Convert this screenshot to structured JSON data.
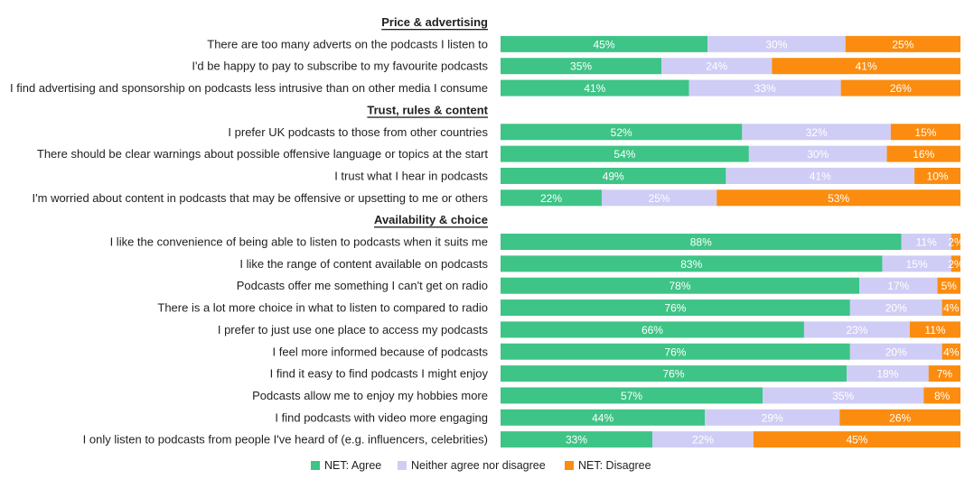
{
  "chart_data": {
    "type": "bar",
    "orientation": "horizontal-stacked-100",
    "colors": {
      "agree": "#3ec486",
      "neither": "#cfcdf5",
      "disagree": "#fb8c0f"
    },
    "legend": [
      {
        "key": "agree",
        "label": "NET: Agree"
      },
      {
        "key": "neither",
        "label": "Neither agree nor disagree"
      },
      {
        "key": "disagree",
        "label": "NET: Disagree"
      }
    ],
    "legend_position": "bottom",
    "groups": [
      {
        "title": "Price & advertising",
        "rows": [
          {
            "label": "There are too many adverts on the podcasts I listen to",
            "agree": 45,
            "neither": 30,
            "disagree": 25
          },
          {
            "label": "I'd be happy to pay to subscribe to my favourite podcasts",
            "agree": 35,
            "neither": 24,
            "disagree": 41
          },
          {
            "label": "I find advertising and sponsorship on podcasts less intrusive than on other media I consume",
            "agree": 41,
            "neither": 33,
            "disagree": 26
          }
        ]
      },
      {
        "title": "Trust, rules & content",
        "rows": [
          {
            "label": "I prefer UK podcasts to those from other countries",
            "agree": 52,
            "neither": 32,
            "disagree": 15
          },
          {
            "label": "There should be clear warnings about possible offensive language or topics at the start",
            "agree": 54,
            "neither": 30,
            "disagree": 16
          },
          {
            "label": "I trust what I hear in podcasts",
            "agree": 49,
            "neither": 41,
            "disagree": 10
          },
          {
            "label": "I'm worried about content in podcasts that may be offensive or upsetting to me or others",
            "agree": 22,
            "neither": 25,
            "disagree": 53
          }
        ]
      },
      {
        "title": "Availability & choice",
        "rows": [
          {
            "label": "I like the convenience of being able to listen to podcasts when it suits me",
            "agree": 88,
            "neither": 11,
            "disagree": 2
          },
          {
            "label": "I like the range of content available on podcasts",
            "agree": 83,
            "neither": 15,
            "disagree": 2
          },
          {
            "label": "Podcasts offer me something I can't get on radio",
            "agree": 78,
            "neither": 17,
            "disagree": 5
          },
          {
            "label": "There is a lot more choice in what to listen to compared to radio",
            "agree": 76,
            "neither": 20,
            "disagree": 4
          },
          {
            "label": "I prefer to just use one place to access my podcasts",
            "agree": 66,
            "neither": 23,
            "disagree": 11
          },
          {
            "label": "I feel more informed because of podcasts",
            "agree": 76,
            "neither": 20,
            "disagree": 4
          },
          {
            "label": "I find it easy to find podcasts I might enjoy",
            "agree": 76,
            "neither": 18,
            "disagree": 7
          },
          {
            "label": "Podcasts allow me to enjoy my hobbies more",
            "agree": 57,
            "neither": 35,
            "disagree": 8
          },
          {
            "label": "I find podcasts with video more engaging",
            "agree": 44,
            "neither": 29,
            "disagree": 26
          },
          {
            "label": "I only listen to podcasts from people I've heard of (e.g. influencers, celebrities)",
            "agree": 33,
            "neither": 22,
            "disagree": 45
          }
        ]
      }
    ]
  }
}
